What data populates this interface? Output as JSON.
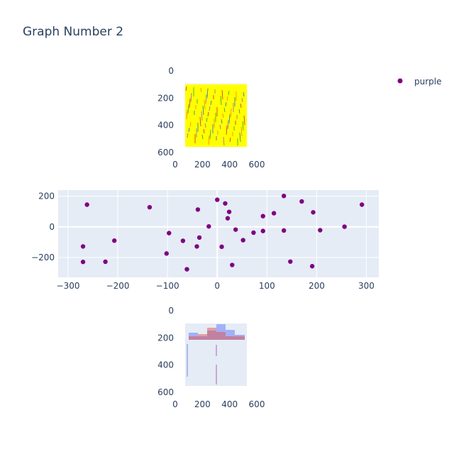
{
  "figure": {
    "title": "Graph Number 2",
    "colors": {
      "plot_bg": "#e5ecf6",
      "grid": "#ffffff",
      "text": "#2a3f5f",
      "marker": "#800080",
      "image_yellow": "#ffff00"
    }
  },
  "legend": {
    "items": [
      {
        "label": "purple",
        "color": "#800080"
      }
    ],
    "placement": "top-right"
  },
  "chart_data": [
    {
      "type": "image",
      "panel": "top",
      "xlim": [
        0,
        600
      ],
      "ylim": [
        600,
        0
      ],
      "x_ticks": [
        "0",
        "200",
        "400",
        "600"
      ],
      "y_ticks": [
        "0",
        "200",
        "400",
        "600"
      ],
      "content": "embedded raster of a plot with yellow background"
    },
    {
      "type": "scatter",
      "panel": "middle",
      "xlim": [
        -320,
        325
      ],
      "ylim": [
        -330,
        240
      ],
      "x_ticks": [
        "−300",
        "−200",
        "−100",
        "0",
        "100",
        "200",
        "300"
      ],
      "y_ticks": [
        "−200",
        "0",
        "200"
      ],
      "grid": true,
      "series": [
        {
          "name": "purple",
          "color": "#800080",
          "x": [
            -262,
            -270,
            -270,
            -225,
            -207,
            -136,
            -102,
            -97,
            -69,
            -61,
            -41,
            -39,
            -36,
            -17,
            0,
            9,
            16,
            21,
            24,
            30,
            37,
            52,
            73,
            92,
            92,
            114,
            134,
            134,
            147,
            170,
            191,
            193,
            207,
            256,
            291
          ],
          "y": [
            145,
            -128,
            -229,
            -228,
            -90,
            128,
            -174,
            -41,
            -91,
            -277,
            -128,
            113,
            -70,
            3,
            177,
            -130,
            153,
            56,
            98,
            -249,
            -18,
            -87,
            -38,
            -27,
            70,
            89,
            202,
            -24,
            -227,
            166,
            -257,
            95,
            -22,
            1,
            145
          ]
        }
      ]
    },
    {
      "type": "image",
      "panel": "bottom",
      "xlim": [
        0,
        600
      ],
      "ylim": [
        600,
        0
      ],
      "x_ticks": [
        "0",
        "200",
        "400",
        "600"
      ],
      "y_ticks": [
        "0",
        "200",
        "400",
        "600"
      ],
      "content": "embedded raster of a histogram with scatter points"
    }
  ]
}
